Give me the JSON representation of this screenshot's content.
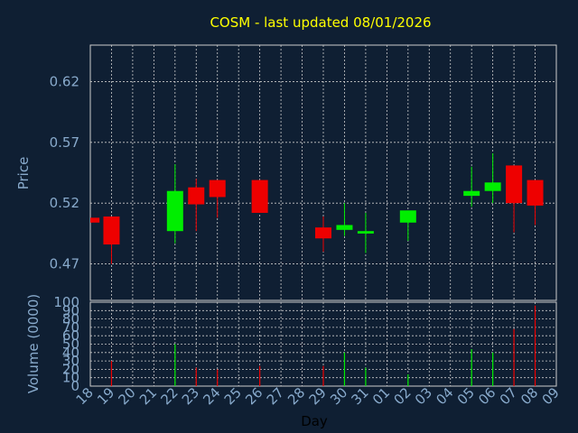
{
  "chart_data": {
    "type": "candlestick",
    "title": "COSM - last updated 08/01/2026",
    "xlabel": "Day",
    "ylabel_price": "Price",
    "ylabel_volume": "Volume (0000)",
    "price_ylim": [
      0.44,
      0.65
    ],
    "price_ticks": [
      "0.62",
      "0.57",
      "0.52",
      "0.47"
    ],
    "price_tick_values": [
      0.62,
      0.57,
      0.52,
      0.47
    ],
    "volume_ylim": [
      0,
      100
    ],
    "volume_ticks": [
      "0",
      "10",
      "20",
      "30",
      "40",
      "50",
      "60",
      "70",
      "80",
      "90",
      "100"
    ],
    "x_labels": [
      "18",
      "19",
      "20",
      "21",
      "22",
      "23",
      "24",
      "25",
      "26",
      "27",
      "28",
      "29",
      "30",
      "31",
      "01",
      "02",
      "03",
      "04",
      "05",
      "06",
      "07",
      "08",
      "09"
    ],
    "grid": true,
    "colors": {
      "up": "#00ee00",
      "down": "#ee0000",
      "grid": "#cccccc",
      "text": "#88aacc",
      "title": "#ffff00",
      "background": "#0f1f33"
    },
    "candles": [
      {
        "x": 0.05,
        "open": 0.508,
        "high": 0.508,
        "low": 0.504,
        "close": 0.504
      },
      {
        "x": 1.0,
        "open": 0.509,
        "high": 0.509,
        "low": 0.47,
        "close": 0.486
      },
      {
        "x": 4.0,
        "open": 0.497,
        "high": 0.552,
        "low": 0.487,
        "close": 0.53
      },
      {
        "x": 5.0,
        "open": 0.533,
        "high": 0.54,
        "low": 0.497,
        "close": 0.519
      },
      {
        "x": 6.0,
        "open": 0.539,
        "high": 0.539,
        "low": 0.508,
        "close": 0.525
      },
      {
        "x": 8.0,
        "open": 0.539,
        "high": 0.539,
        "low": 0.512,
        "close": 0.512
      },
      {
        "x": 11.0,
        "open": 0.5,
        "high": 0.509,
        "low": 0.48,
        "close": 0.491
      },
      {
        "x": 12.0,
        "open": 0.498,
        "high": 0.52,
        "low": 0.493,
        "close": 0.502
      },
      {
        "x": 13.0,
        "open": 0.495,
        "high": 0.512,
        "low": 0.479,
        "close": 0.497
      },
      {
        "x": 15.0,
        "open": 0.504,
        "high": 0.514,
        "low": 0.489,
        "close": 0.514
      },
      {
        "x": 18.0,
        "open": 0.526,
        "high": 0.55,
        "low": 0.517,
        "close": 0.53
      },
      {
        "x": 19.0,
        "open": 0.53,
        "high": 0.561,
        "low": 0.52,
        "close": 0.537
      },
      {
        "x": 20.0,
        "open": 0.551,
        "high": 0.551,
        "low": 0.496,
        "close": 0.52
      },
      {
        "x": 21.0,
        "open": 0.539,
        "high": 0.539,
        "low": 0.502,
        "close": 0.518
      }
    ],
    "volume": [
      {
        "x": 1.0,
        "value": 30,
        "dir": "down"
      },
      {
        "x": 4.0,
        "value": 50,
        "dir": "up"
      },
      {
        "x": 5.0,
        "value": 22,
        "dir": "down"
      },
      {
        "x": 6.0,
        "value": 20,
        "dir": "down"
      },
      {
        "x": 8.0,
        "value": 24,
        "dir": "down"
      },
      {
        "x": 11.0,
        "value": 24,
        "dir": "down"
      },
      {
        "x": 12.0,
        "value": 40,
        "dir": "up"
      },
      {
        "x": 13.0,
        "value": 22,
        "dir": "up"
      },
      {
        "x": 15.0,
        "value": 14,
        "dir": "up"
      },
      {
        "x": 18.0,
        "value": 44,
        "dir": "up"
      },
      {
        "x": 19.0,
        "value": 40,
        "dir": "up"
      },
      {
        "x": 20.0,
        "value": 68,
        "dir": "down"
      },
      {
        "x": 21.0,
        "value": 96,
        "dir": "down"
      }
    ]
  }
}
